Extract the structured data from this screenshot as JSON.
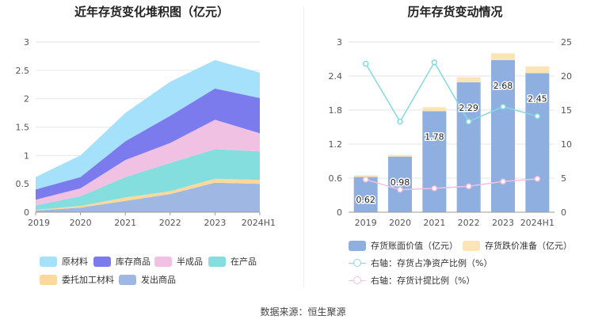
{
  "left_chart": {
    "title": "近年存货变化堆积图（亿元）",
    "legend": [
      {
        "label": "原材料",
        "color": "#a6e1fb"
      },
      {
        "label": "库存商品",
        "color": "#7b7bee"
      },
      {
        "label": "半成品",
        "color": "#f1c1e4"
      },
      {
        "label": "在产品",
        "color": "#85dede"
      },
      {
        "label": "委托加工材料",
        "color": "#fbd89b"
      },
      {
        "label": "发出商品",
        "color": "#9fb7e3"
      }
    ]
  },
  "right_chart": {
    "title": "历年存货变动情况",
    "legend": [
      {
        "label": "存货账面价值（亿元）",
        "color": "#8fafe0",
        "kind": "bar"
      },
      {
        "label": "存货跌价准备（亿元）",
        "color": "#fde4b7",
        "kind": "bar"
      },
      {
        "label": "右轴：存货占净资产比例（%）",
        "color": "#84d9e3",
        "kind": "line"
      },
      {
        "label": "右轴：存货计提比例（%）",
        "color": "#f1c1e0",
        "kind": "line"
      }
    ]
  },
  "chart_data": [
    {
      "type": "area",
      "stacked": true,
      "title": "近年存货变化堆积图（亿元）",
      "categories": [
        "2019",
        "2020",
        "2021",
        "2022",
        "2023",
        "2024H1"
      ],
      "ylim": [
        0,
        3
      ],
      "yticks": [
        "0",
        "0.5",
        "1",
        "1.5",
        "2",
        "2.5",
        "3"
      ],
      "grid": true,
      "series": [
        {
          "name": "发出商品",
          "color": "#9fb7e3",
          "values": [
            0.03,
            0.08,
            0.2,
            0.32,
            0.52,
            0.5
          ]
        },
        {
          "name": "委托加工材料",
          "color": "#fbd89b",
          "values": [
            0.01,
            0.03,
            0.06,
            0.05,
            0.07,
            0.07
          ]
        },
        {
          "name": "在产品",
          "color": "#85dede",
          "values": [
            0.08,
            0.17,
            0.36,
            0.5,
            0.52,
            0.5
          ]
        },
        {
          "name": "半成品",
          "color": "#f1c1e4",
          "values": [
            0.1,
            0.14,
            0.3,
            0.35,
            0.52,
            0.32
          ]
        },
        {
          "name": "库存商品",
          "color": "#7b7bee",
          "values": [
            0.18,
            0.2,
            0.33,
            0.48,
            0.55,
            0.62
          ]
        },
        {
          "name": "原材料",
          "color": "#a6e1fb",
          "values": [
            0.22,
            0.38,
            0.5,
            0.6,
            0.5,
            0.45
          ]
        }
      ]
    },
    {
      "type": "bar",
      "stacked": true,
      "title": "历年存货变动情况",
      "categories": [
        "2019",
        "2020",
        "2021",
        "2022",
        "2023",
        "2024H1"
      ],
      "ylim": [
        0,
        3
      ],
      "yticks": [
        "0",
        "0.6",
        "1.2",
        "1.8",
        "2.4",
        "3"
      ],
      "y2lim": [
        0,
        25
      ],
      "y2ticks": [
        "0",
        "5",
        "10",
        "15",
        "20",
        "25"
      ],
      "grid": true,
      "series": [
        {
          "name": "存货账面价值（亿元）",
          "color": "#8fafe0",
          "axis": "left",
          "values": [
            0.62,
            0.98,
            1.78,
            2.29,
            2.68,
            2.45
          ],
          "labels": [
            "0.62",
            "0.98",
            "1.78",
            "2.29",
            "2.68",
            "2.45"
          ]
        },
        {
          "name": "存货跌价准备（亿元）",
          "color": "#fde4b7",
          "axis": "left",
          "values": [
            0.03,
            0.03,
            0.07,
            0.09,
            0.12,
            0.12
          ]
        },
        {
          "name": "右轴：存货占净资产比例（%）",
          "color": "#84d9e3",
          "axis": "right",
          "type": "line",
          "values": [
            21.8,
            13.3,
            22.0,
            13.3,
            15.5,
            14.1
          ]
        },
        {
          "name": "右轴：存货计提比例（%）",
          "color": "#f1c1e0",
          "axis": "right",
          "type": "line",
          "values": [
            4.8,
            3.3,
            3.5,
            3.8,
            4.5,
            4.9
          ]
        }
      ]
    }
  ],
  "source": "数据来源：恒生聚源"
}
